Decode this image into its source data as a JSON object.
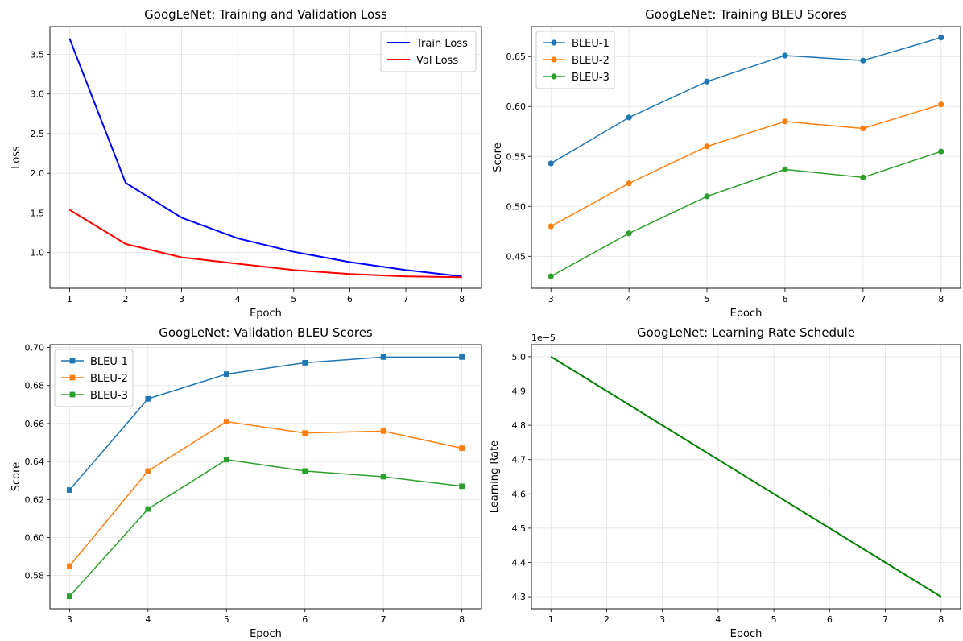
{
  "chart_data": [
    {
      "type": "line",
      "title": "GoogLeNet: Training and Validation Loss",
      "xlabel": "Epoch",
      "ylabel": "Loss",
      "xlim": [
        0.65,
        8.35
      ],
      "ylim": [
        0.55,
        3.85
      ],
      "xticks": [
        1,
        2,
        3,
        4,
        5,
        6,
        7,
        8
      ],
      "yticks": [
        1.0,
        1.5,
        2.0,
        2.5,
        3.0,
        3.5
      ],
      "ytick_labels": [
        "1.0",
        "1.5",
        "2.0",
        "2.5",
        "3.0",
        "3.5"
      ],
      "grid": true,
      "legend": "top-right",
      "x": [
        1,
        2,
        3,
        4,
        5,
        6,
        7,
        8
      ],
      "series": [
        {
          "name": "Train Loss",
          "color": "#0000ff",
          "marker": "none",
          "values": [
            3.7,
            1.88,
            1.44,
            1.18,
            1.01,
            0.88,
            0.78,
            0.7
          ]
        },
        {
          "name": "Val Loss",
          "color": "#ff0000",
          "marker": "none",
          "values": [
            1.54,
            1.11,
            0.94,
            0.86,
            0.78,
            0.73,
            0.7,
            0.69
          ]
        }
      ]
    },
    {
      "type": "line",
      "title": "GoogLeNet: Training BLEU Scores",
      "xlabel": "Epoch",
      "ylabel": "Score",
      "xlim": [
        2.75,
        8.25
      ],
      "ylim": [
        0.418,
        0.68
      ],
      "xticks": [
        3,
        4,
        5,
        6,
        7,
        8
      ],
      "yticks": [
        0.45,
        0.5,
        0.55,
        0.6,
        0.65
      ],
      "ytick_labels": [
        "0.45",
        "0.50",
        "0.55",
        "0.60",
        "0.65"
      ],
      "grid": true,
      "legend": "top-left",
      "x": [
        3,
        4,
        5,
        6,
        7,
        8
      ],
      "series": [
        {
          "name": "BLEU-1",
          "color": "#1f77b4",
          "marker": "circle",
          "values": [
            0.543,
            0.589,
            0.625,
            0.651,
            0.646,
            0.669
          ]
        },
        {
          "name": "BLEU-2",
          "color": "#ff7f0e",
          "marker": "circle",
          "values": [
            0.48,
            0.523,
            0.56,
            0.585,
            0.578,
            0.602
          ]
        },
        {
          "name": "BLEU-3",
          "color": "#2ca02c",
          "marker": "circle",
          "values": [
            0.43,
            0.473,
            0.51,
            0.537,
            0.529,
            0.555
          ]
        }
      ]
    },
    {
      "type": "line",
      "title": "GoogLeNet: Validation BLEU Scores",
      "xlabel": "Epoch",
      "ylabel": "Score",
      "xlim": [
        2.75,
        8.25
      ],
      "ylim": [
        0.5625,
        0.7015
      ],
      "xticks": [
        3,
        4,
        5,
        6,
        7,
        8
      ],
      "yticks": [
        0.58,
        0.6,
        0.62,
        0.64,
        0.66,
        0.68,
        0.7
      ],
      "ytick_labels": [
        "0.58",
        "0.60",
        "0.62",
        "0.64",
        "0.66",
        "0.68",
        "0.70"
      ],
      "grid": true,
      "legend": "top-left",
      "x": [
        3,
        4,
        5,
        6,
        7,
        8
      ],
      "series": [
        {
          "name": "BLEU-1",
          "color": "#1f77b4",
          "marker": "square",
          "values": [
            0.625,
            0.673,
            0.686,
            0.692,
            0.695,
            0.695
          ]
        },
        {
          "name": "BLEU-2",
          "color": "#ff7f0e",
          "marker": "square",
          "values": [
            0.585,
            0.635,
            0.661,
            0.655,
            0.656,
            0.647
          ]
        },
        {
          "name": "BLEU-3",
          "color": "#2ca02c",
          "marker": "square",
          "values": [
            0.569,
            0.615,
            0.641,
            0.635,
            0.632,
            0.627
          ]
        }
      ]
    },
    {
      "type": "line",
      "title": "GoogLeNet: Learning Rate Schedule",
      "xlabel": "Epoch",
      "ylabel": "Learning Rate",
      "offset_text": "1e−5",
      "xlim": [
        0.65,
        8.35
      ],
      "ylim": [
        4.265,
        5.035
      ],
      "xticks": [
        1,
        2,
        3,
        4,
        5,
        6,
        7,
        8
      ],
      "yticks": [
        4.3,
        4.4,
        4.5,
        4.6,
        4.7,
        4.8,
        4.9,
        5.0
      ],
      "ytick_labels": [
        "4.3",
        "4.4",
        "4.5",
        "4.6",
        "4.7",
        "4.8",
        "4.9",
        "5.0"
      ],
      "grid": true,
      "legend": "none",
      "x": [
        1,
        2,
        3,
        4,
        5,
        6,
        7,
        8
      ],
      "series": [
        {
          "color": "#008000",
          "marker": "none",
          "values": [
            5.0,
            4.9,
            4.8,
            4.7,
            4.6,
            4.5,
            4.4,
            4.3
          ]
        }
      ]
    }
  ]
}
